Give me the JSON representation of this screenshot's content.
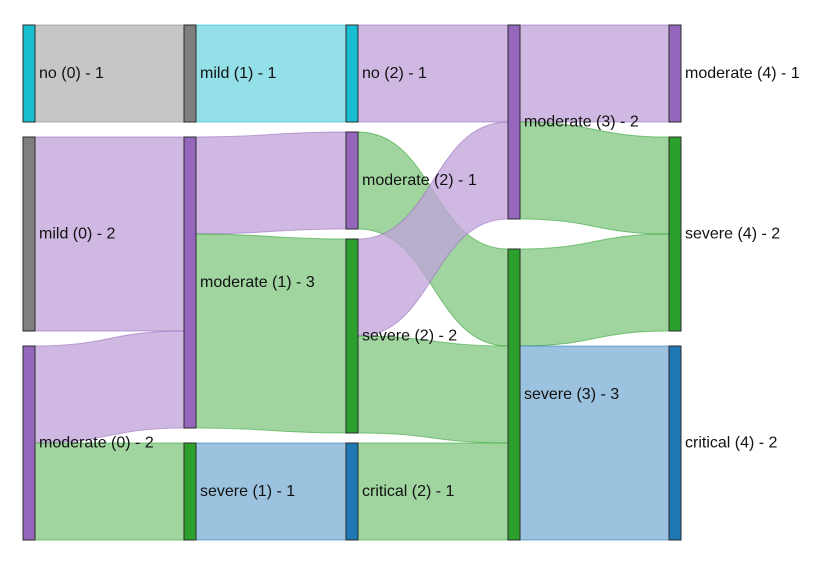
{
  "chart_data": {
    "type": "sankey",
    "stages": [
      "0",
      "1",
      "2",
      "3",
      "4"
    ],
    "nodes": [
      {
        "id": "no0",
        "label": "no (0) - 1",
        "stage": 0,
        "category": "no",
        "value": 1
      },
      {
        "id": "mild0",
        "label": "mild (0) - 2",
        "stage": 0,
        "category": "mild",
        "value": 2
      },
      {
        "id": "mod0",
        "label": "moderate (0) - 2",
        "stage": 0,
        "category": "moderate",
        "value": 2
      },
      {
        "id": "mild1",
        "label": "mild (1) - 1",
        "stage": 1,
        "category": "mild",
        "value": 1
      },
      {
        "id": "mod1",
        "label": "moderate (1) - 3",
        "stage": 1,
        "category": "moderate",
        "value": 3
      },
      {
        "id": "sev1",
        "label": "severe (1) - 1",
        "stage": 1,
        "category": "severe",
        "value": 1
      },
      {
        "id": "no2",
        "label": "no (2) - 1",
        "stage": 2,
        "category": "no",
        "value": 1
      },
      {
        "id": "mod2",
        "label": "moderate (2) - 1",
        "stage": 2,
        "category": "moderate",
        "value": 1
      },
      {
        "id": "sev2",
        "label": "severe (2) - 2",
        "stage": 2,
        "category": "severe",
        "value": 2
      },
      {
        "id": "crit2",
        "label": "critical (2) - 1",
        "stage": 2,
        "category": "critical",
        "value": 1
      },
      {
        "id": "mod3",
        "label": "moderate (3) - 2",
        "stage": 3,
        "category": "moderate",
        "value": 2
      },
      {
        "id": "sev3",
        "label": "severe (3) - 3",
        "stage": 3,
        "category": "severe",
        "value": 3
      },
      {
        "id": "mod4",
        "label": "moderate (4) - 1",
        "stage": 4,
        "category": "moderate",
        "value": 1
      },
      {
        "id": "sev4",
        "label": "severe (4) - 2",
        "stage": 4,
        "category": "severe",
        "value": 2
      },
      {
        "id": "crit4",
        "label": "critical (4) - 2",
        "stage": 4,
        "category": "critical",
        "value": 2
      }
    ],
    "links": [
      {
        "source": "no0",
        "target": "mild1",
        "value": 1
      },
      {
        "source": "mild0",
        "target": "mod1",
        "value": 2
      },
      {
        "source": "mod0",
        "target": "mod1",
        "value": 1
      },
      {
        "source": "mod0",
        "target": "sev1",
        "value": 1
      },
      {
        "source": "mild1",
        "target": "no2",
        "value": 1
      },
      {
        "source": "mod1",
        "target": "mod2",
        "value": 1
      },
      {
        "source": "mod1",
        "target": "sev2",
        "value": 2
      },
      {
        "source": "sev1",
        "target": "crit2",
        "value": 1
      },
      {
        "source": "no2",
        "target": "mod3",
        "value": 1
      },
      {
        "source": "mod2",
        "target": "sev3",
        "value": 1
      },
      {
        "source": "sev2",
        "target": "mod3",
        "value": 1
      },
      {
        "source": "sev2",
        "target": "sev3",
        "value": 1
      },
      {
        "source": "crit2",
        "target": "sev3",
        "value": 1
      },
      {
        "source": "mod3",
        "target": "mod4",
        "value": 1
      },
      {
        "source": "mod3",
        "target": "sev4",
        "value": 1
      },
      {
        "source": "sev3",
        "target": "sev4",
        "value": 1
      },
      {
        "source": "sev3",
        "target": "crit4",
        "value": 2
      }
    ],
    "category_colors": {
      "no": {
        "node": "#17becf",
        "link": "#6fd6e2"
      },
      "mild": {
        "node": "#7f7f7f",
        "link": "#b3b3b3"
      },
      "moderate": {
        "node": "#9467bd",
        "link": "#bfa2d9"
      },
      "severe": {
        "node": "#2ca02c",
        "link": "#80c780"
      },
      "critical": {
        "node": "#1f77b4",
        "link": "#79aed3"
      }
    },
    "link_color_by": "target"
  }
}
